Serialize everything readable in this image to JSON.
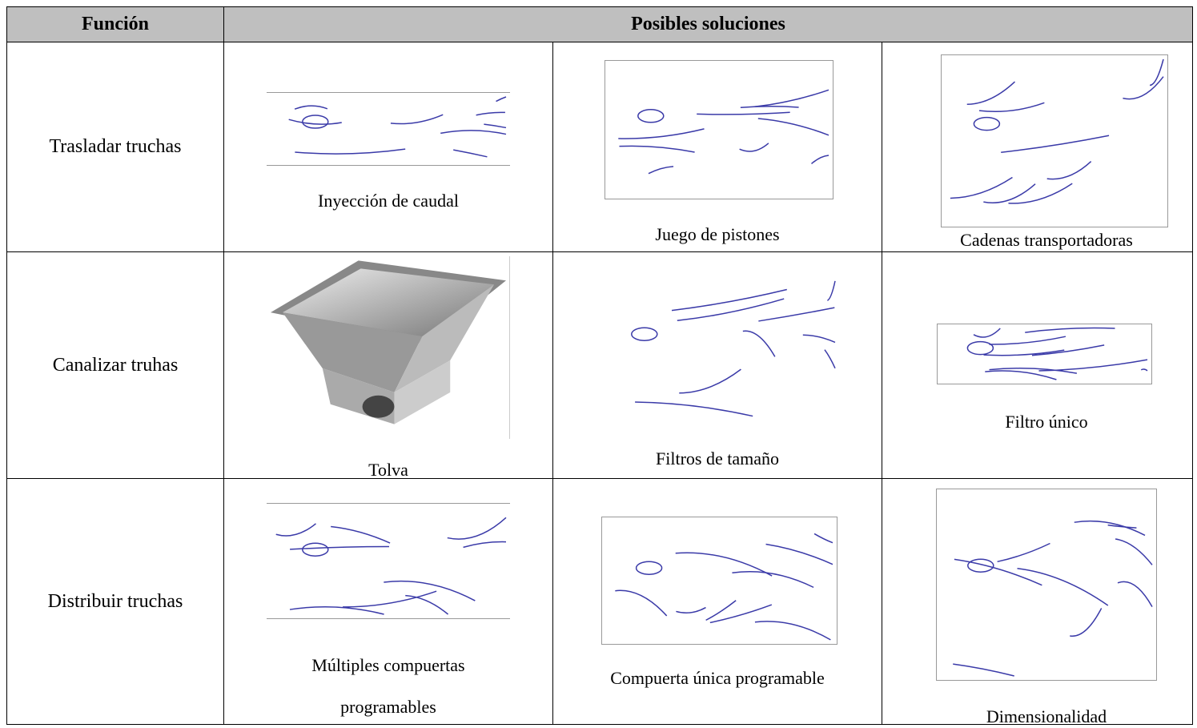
{
  "table": {
    "header": [
      "Función",
      "Posibles soluciones"
    ],
    "rows": [
      {
        "function": "Trasladar truchas",
        "solutions": [
          "Inyección de caudal",
          "Juego de pistones",
          "Cadenas transportadoras"
        ]
      },
      {
        "function": "Canalizar truhas",
        "solutions": [
          "Tolva",
          "Filtros de tamaño",
          "Filtro único"
        ]
      },
      {
        "function": "Distribuir truchas",
        "solutions": [
          "Múltiples compuertas programables",
          "Compuerta única programable",
          "Dimensionalidad"
        ]
      }
    ]
  }
}
